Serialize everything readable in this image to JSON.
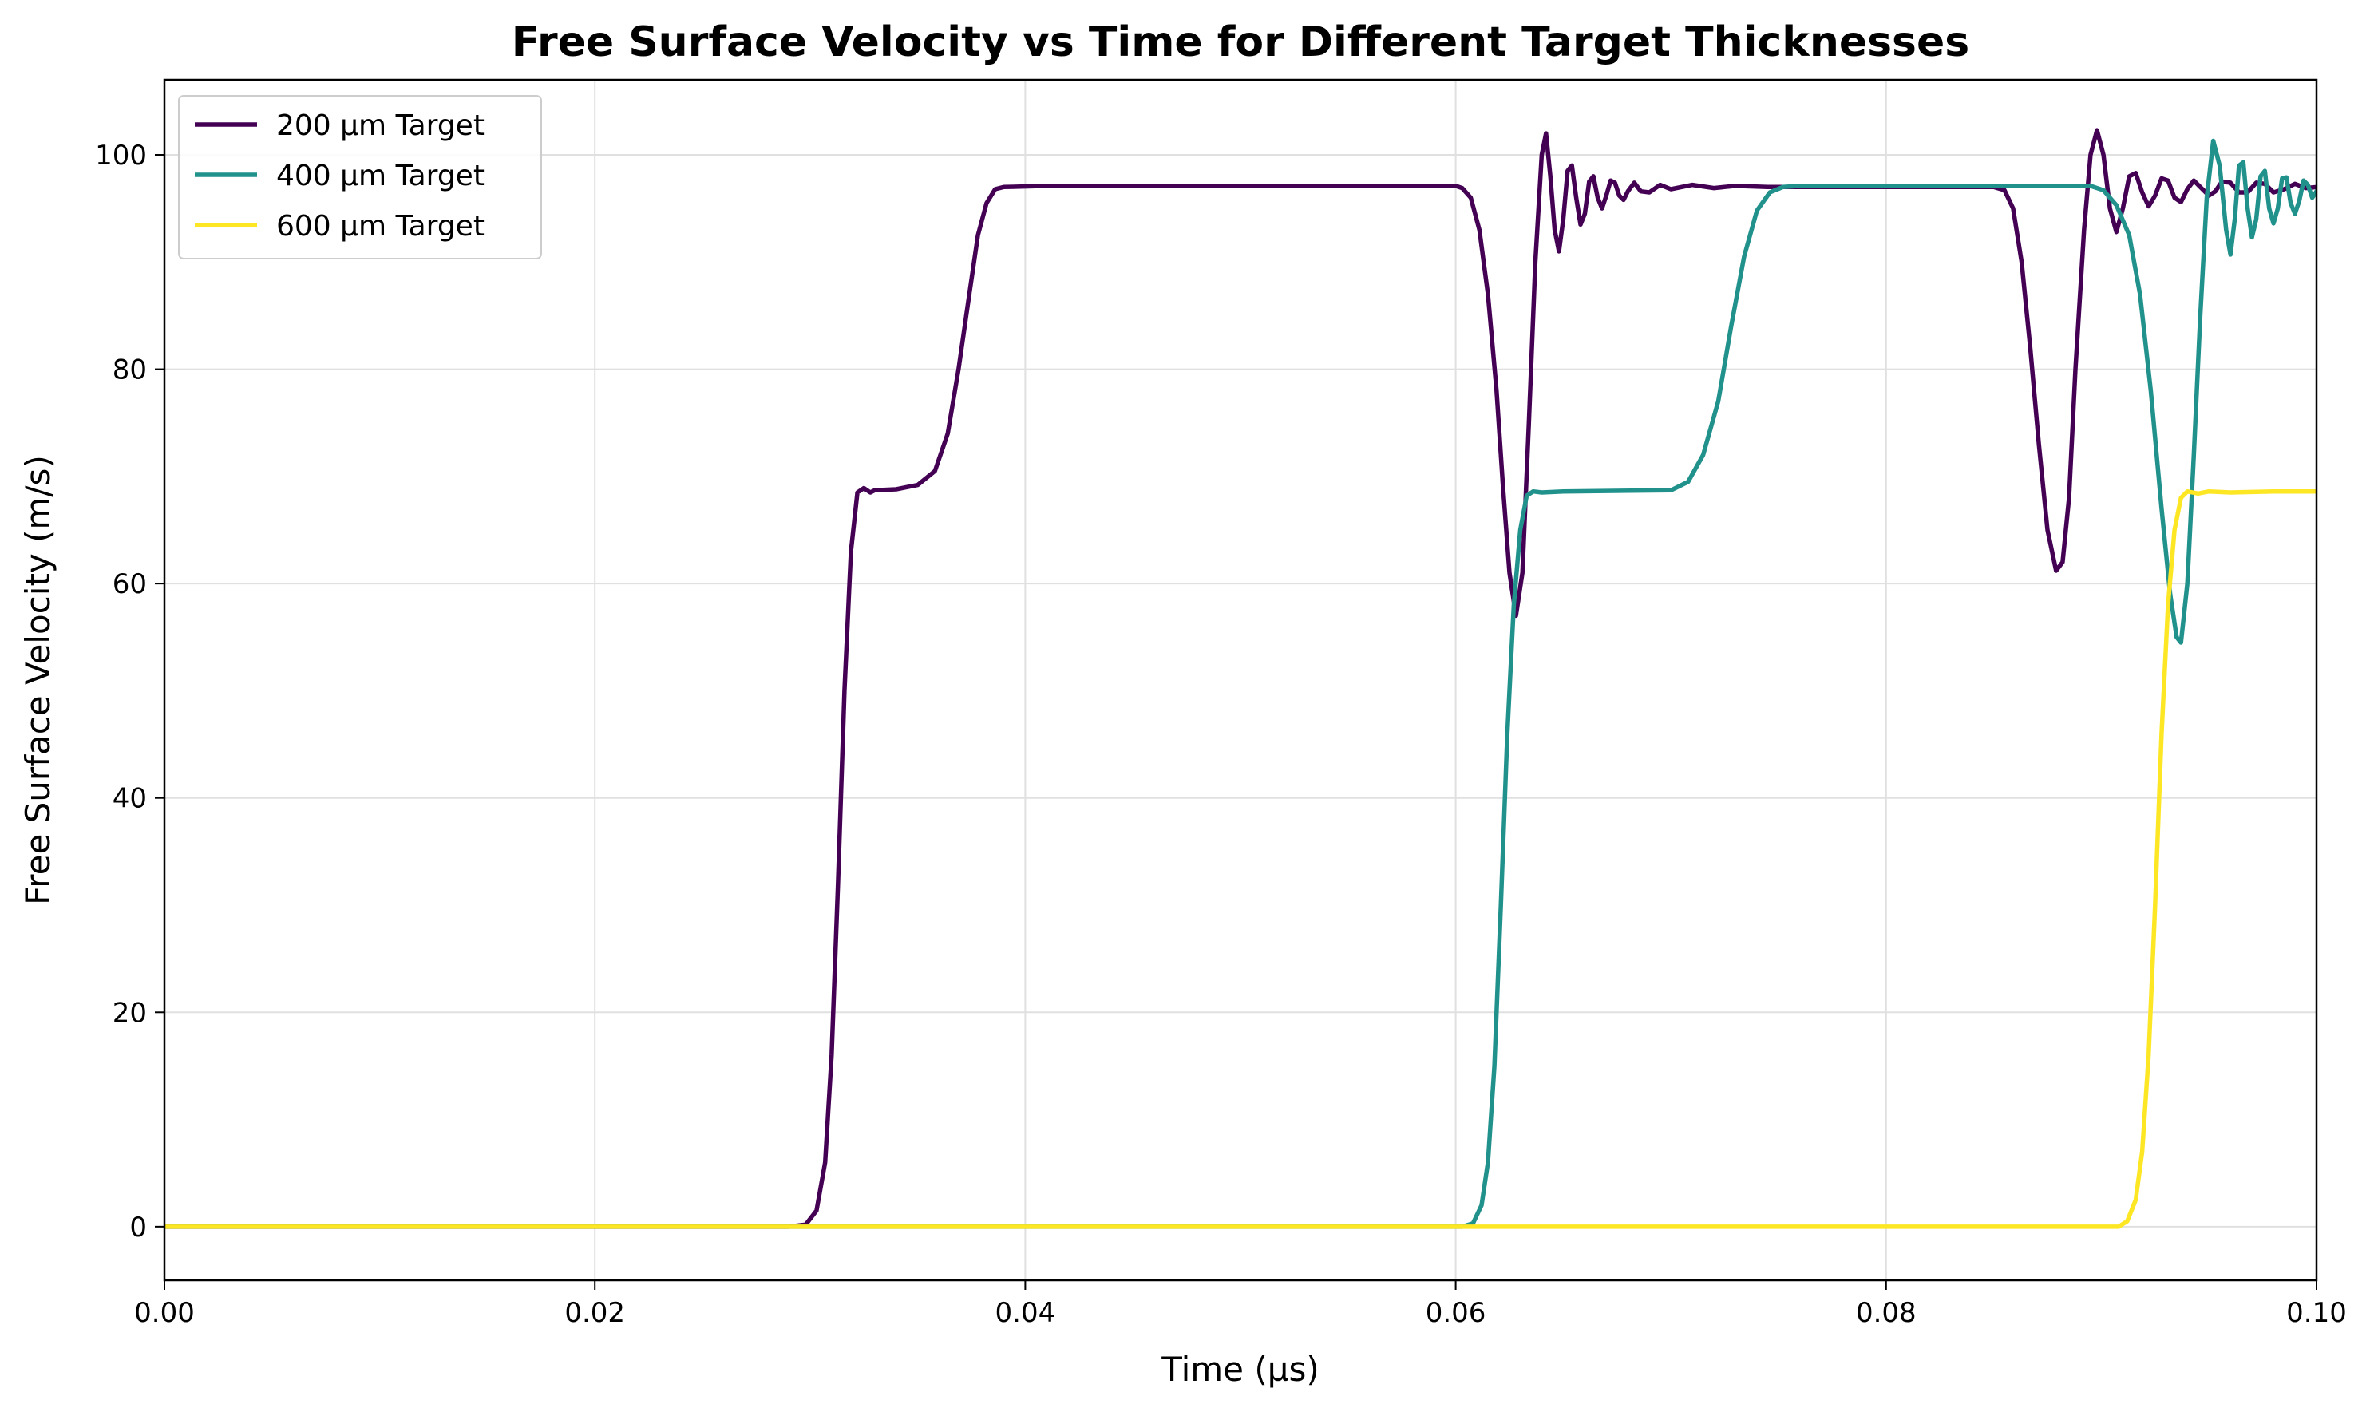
{
  "chart_data": {
    "type": "line",
    "title": "Free Surface Velocity vs Time for Different Target Thicknesses",
    "xlabel": "Time (µs)",
    "ylabel": "Free Surface Velocity (m/s)",
    "xlim": [
      0,
      0.1
    ],
    "ylim": [
      -5,
      107
    ],
    "xticks": [
      0,
      0.02,
      0.04,
      0.06,
      0.08,
      0.1
    ],
    "xtick_labels": [
      "0.00",
      "0.02",
      "0.04",
      "0.06",
      "0.08",
      "0.10"
    ],
    "yticks": [
      0,
      20,
      40,
      60,
      80,
      100
    ],
    "ytick_labels": [
      "0",
      "20",
      "40",
      "60",
      "80",
      "100"
    ],
    "grid": true,
    "legend_position": "top-left",
    "series": [
      {
        "name": "200 µm Target",
        "color": "#440154",
        "points": [
          [
            0,
            0
          ],
          [
            0.029,
            0
          ],
          [
            0.0298,
            0.2
          ],
          [
            0.0303,
            1.5
          ],
          [
            0.0307,
            6
          ],
          [
            0.031,
            16
          ],
          [
            0.0313,
            32
          ],
          [
            0.0316,
            50
          ],
          [
            0.0319,
            63
          ],
          [
            0.0322,
            68.5
          ],
          [
            0.0325,
            68.9
          ],
          [
            0.0328,
            68.5
          ],
          [
            0.033,
            68.7
          ],
          [
            0.034,
            68.8
          ],
          [
            0.035,
            69.2
          ],
          [
            0.0358,
            70.5
          ],
          [
            0.0364,
            74
          ],
          [
            0.0369,
            80
          ],
          [
            0.0374,
            87
          ],
          [
            0.0378,
            92.5
          ],
          [
            0.0382,
            95.5
          ],
          [
            0.0386,
            96.8
          ],
          [
            0.039,
            97
          ],
          [
            0.041,
            97.1
          ],
          [
            0.06,
            97.1
          ],
          [
            0.0603,
            96.9
          ],
          [
            0.0607,
            96
          ],
          [
            0.0611,
            93
          ],
          [
            0.0615,
            87
          ],
          [
            0.0619,
            78
          ],
          [
            0.0622,
            69
          ],
          [
            0.0625,
            61
          ],
          [
            0.0628,
            57
          ],
          [
            0.0631,
            61
          ],
          [
            0.0634,
            75
          ],
          [
            0.0637,
            90
          ],
          [
            0.064,
            100
          ],
          [
            0.0642,
            102
          ],
          [
            0.0644,
            98
          ],
          [
            0.0646,
            93
          ],
          [
            0.0648,
            91
          ],
          [
            0.065,
            94
          ],
          [
            0.0652,
            98.5
          ],
          [
            0.0654,
            99
          ],
          [
            0.0656,
            96
          ],
          [
            0.0658,
            93.5
          ],
          [
            0.066,
            94.5
          ],
          [
            0.0662,
            97.5
          ],
          [
            0.0664,
            98
          ],
          [
            0.0666,
            96
          ],
          [
            0.0668,
            95
          ],
          [
            0.067,
            96.2
          ],
          [
            0.0672,
            97.6
          ],
          [
            0.0674,
            97.4
          ],
          [
            0.0676,
            96.2
          ],
          [
            0.0678,
            95.8
          ],
          [
            0.068,
            96.6
          ],
          [
            0.0683,
            97.4
          ],
          [
            0.0686,
            96.6
          ],
          [
            0.069,
            96.5
          ],
          [
            0.0695,
            97.2
          ],
          [
            0.07,
            96.8
          ],
          [
            0.071,
            97.2
          ],
          [
            0.072,
            96.9
          ],
          [
            0.073,
            97.1
          ],
          [
            0.0745,
            97
          ],
          [
            0.08,
            97
          ],
          [
            0.085,
            97
          ],
          [
            0.0855,
            96.7
          ],
          [
            0.0859,
            95
          ],
          [
            0.0863,
            90
          ],
          [
            0.0867,
            82
          ],
          [
            0.0871,
            73
          ],
          [
            0.0875,
            65
          ],
          [
            0.0879,
            61.2
          ],
          [
            0.0882,
            62
          ],
          [
            0.0885,
            68
          ],
          [
            0.0888,
            80
          ],
          [
            0.0892,
            93
          ],
          [
            0.0895,
            100
          ],
          [
            0.0898,
            102.3
          ],
          [
            0.0901,
            100
          ],
          [
            0.0904,
            95
          ],
          [
            0.0907,
            92.8
          ],
          [
            0.091,
            95
          ],
          [
            0.0913,
            98
          ],
          [
            0.0916,
            98.3
          ],
          [
            0.0919,
            96.5
          ],
          [
            0.0922,
            95.2
          ],
          [
            0.0925,
            96.2
          ],
          [
            0.0928,
            97.8
          ],
          [
            0.0931,
            97.6
          ],
          [
            0.0934,
            96
          ],
          [
            0.0937,
            95.6
          ],
          [
            0.094,
            96.8
          ],
          [
            0.0943,
            97.6
          ],
          [
            0.0946,
            97
          ],
          [
            0.095,
            96.2
          ],
          [
            0.0953,
            96.6
          ],
          [
            0.0956,
            97.5
          ],
          [
            0.096,
            97.4
          ],
          [
            0.0964,
            96.5
          ],
          [
            0.0968,
            96.5
          ],
          [
            0.0972,
            97.4
          ],
          [
            0.0976,
            97.3
          ],
          [
            0.098,
            96.5
          ],
          [
            0.0985,
            96.8
          ],
          [
            0.099,
            97.3
          ],
          [
            0.0995,
            96.9
          ],
          [
            0.1,
            97
          ]
        ]
      },
      {
        "name": "400 µm Target",
        "color": "#21918c",
        "points": [
          [
            0,
            0
          ],
          [
            0.0603,
            0
          ],
          [
            0.0608,
            0.3
          ],
          [
            0.0612,
            2
          ],
          [
            0.0615,
            6
          ],
          [
            0.0618,
            15
          ],
          [
            0.0621,
            30
          ],
          [
            0.0624,
            46
          ],
          [
            0.0627,
            58
          ],
          [
            0.063,
            65
          ],
          [
            0.0633,
            68.2
          ],
          [
            0.0636,
            68.6
          ],
          [
            0.064,
            68.5
          ],
          [
            0.065,
            68.6
          ],
          [
            0.07,
            68.7
          ],
          [
            0.0708,
            69.5
          ],
          [
            0.0715,
            72
          ],
          [
            0.0722,
            77
          ],
          [
            0.0728,
            84
          ],
          [
            0.0734,
            90.5
          ],
          [
            0.074,
            94.8
          ],
          [
            0.0746,
            96.5
          ],
          [
            0.0752,
            97
          ],
          [
            0.076,
            97.1
          ],
          [
            0.08,
            97.1
          ],
          [
            0.0895,
            97.1
          ],
          [
            0.0901,
            96.7
          ],
          [
            0.0907,
            95.3
          ],
          [
            0.0913,
            92.5
          ],
          [
            0.0918,
            87
          ],
          [
            0.0923,
            78
          ],
          [
            0.0928,
            67
          ],
          [
            0.0932,
            59
          ],
          [
            0.0935,
            55
          ],
          [
            0.0937,
            54.5
          ],
          [
            0.094,
            60
          ],
          [
            0.0943,
            72
          ],
          [
            0.0946,
            85
          ],
          [
            0.0949,
            96
          ],
          [
            0.0952,
            101.3
          ],
          [
            0.0955,
            99
          ],
          [
            0.0958,
            93
          ],
          [
            0.096,
            90.7
          ],
          [
            0.0962,
            94
          ],
          [
            0.0964,
            99
          ],
          [
            0.0966,
            99.3
          ],
          [
            0.0968,
            95
          ],
          [
            0.097,
            92.3
          ],
          [
            0.0972,
            94
          ],
          [
            0.0974,
            98
          ],
          [
            0.0976,
            98.5
          ],
          [
            0.0978,
            95
          ],
          [
            0.098,
            93.6
          ],
          [
            0.0982,
            95
          ],
          [
            0.0984,
            97.8
          ],
          [
            0.0986,
            97.9
          ],
          [
            0.0988,
            95.5
          ],
          [
            0.099,
            94.5
          ],
          [
            0.0992,
            95.7
          ],
          [
            0.0994,
            97.6
          ],
          [
            0.0996,
            97.2
          ],
          [
            0.0998,
            96
          ],
          [
            0.1,
            96.6
          ]
        ]
      },
      {
        "name": "600 µm Target",
        "color": "#fde725",
        "points": [
          [
            0,
            0
          ],
          [
            0.0908,
            0
          ],
          [
            0.0912,
            0.5
          ],
          [
            0.0916,
            2.5
          ],
          [
            0.0919,
            7
          ],
          [
            0.0922,
            16
          ],
          [
            0.0925,
            30
          ],
          [
            0.0928,
            46
          ],
          [
            0.0931,
            58
          ],
          [
            0.0934,
            65
          ],
          [
            0.0937,
            68
          ],
          [
            0.094,
            68.6
          ],
          [
            0.0945,
            68.4
          ],
          [
            0.095,
            68.6
          ],
          [
            0.096,
            68.5
          ],
          [
            0.098,
            68.6
          ],
          [
            0.1,
            68.6
          ]
        ]
      }
    ]
  }
}
